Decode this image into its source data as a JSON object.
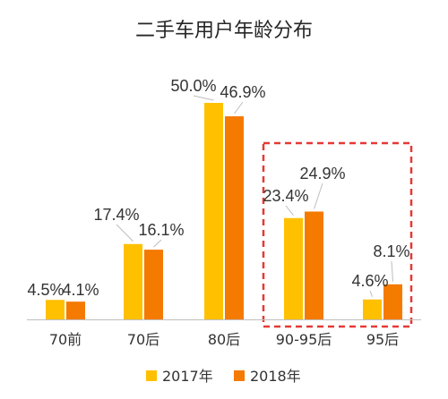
{
  "chart_data": {
    "type": "bar",
    "title": "二手车用户年龄分布",
    "categories": [
      "70前",
      "70后",
      "80后",
      "90-95后",
      "95后"
    ],
    "series": [
      {
        "name": "2017年",
        "values": [
          4.5,
          17.4,
          50.0,
          23.4,
          4.6
        ],
        "labels": [
          "4.5%",
          "17.4%",
          "50.0%",
          "23.4%",
          "4.6%"
        ],
        "color": "#FFC000"
      },
      {
        "name": "2018年",
        "values": [
          4.1,
          16.1,
          46.9,
          24.9,
          8.1
        ],
        "labels": [
          "4.1%",
          "16.1%",
          "46.9%",
          "24.9%",
          "8.1%"
        ],
        "color": "#F47A00"
      }
    ],
    "ylim": [
      0,
      50
    ],
    "grid": false,
    "legend": "bottom",
    "highlight": {
      "categories": [
        "90-95后",
        "95后"
      ],
      "style": "red-dashed-box",
      "color": "#E53935"
    },
    "axis_color": "#BFBFBF"
  }
}
